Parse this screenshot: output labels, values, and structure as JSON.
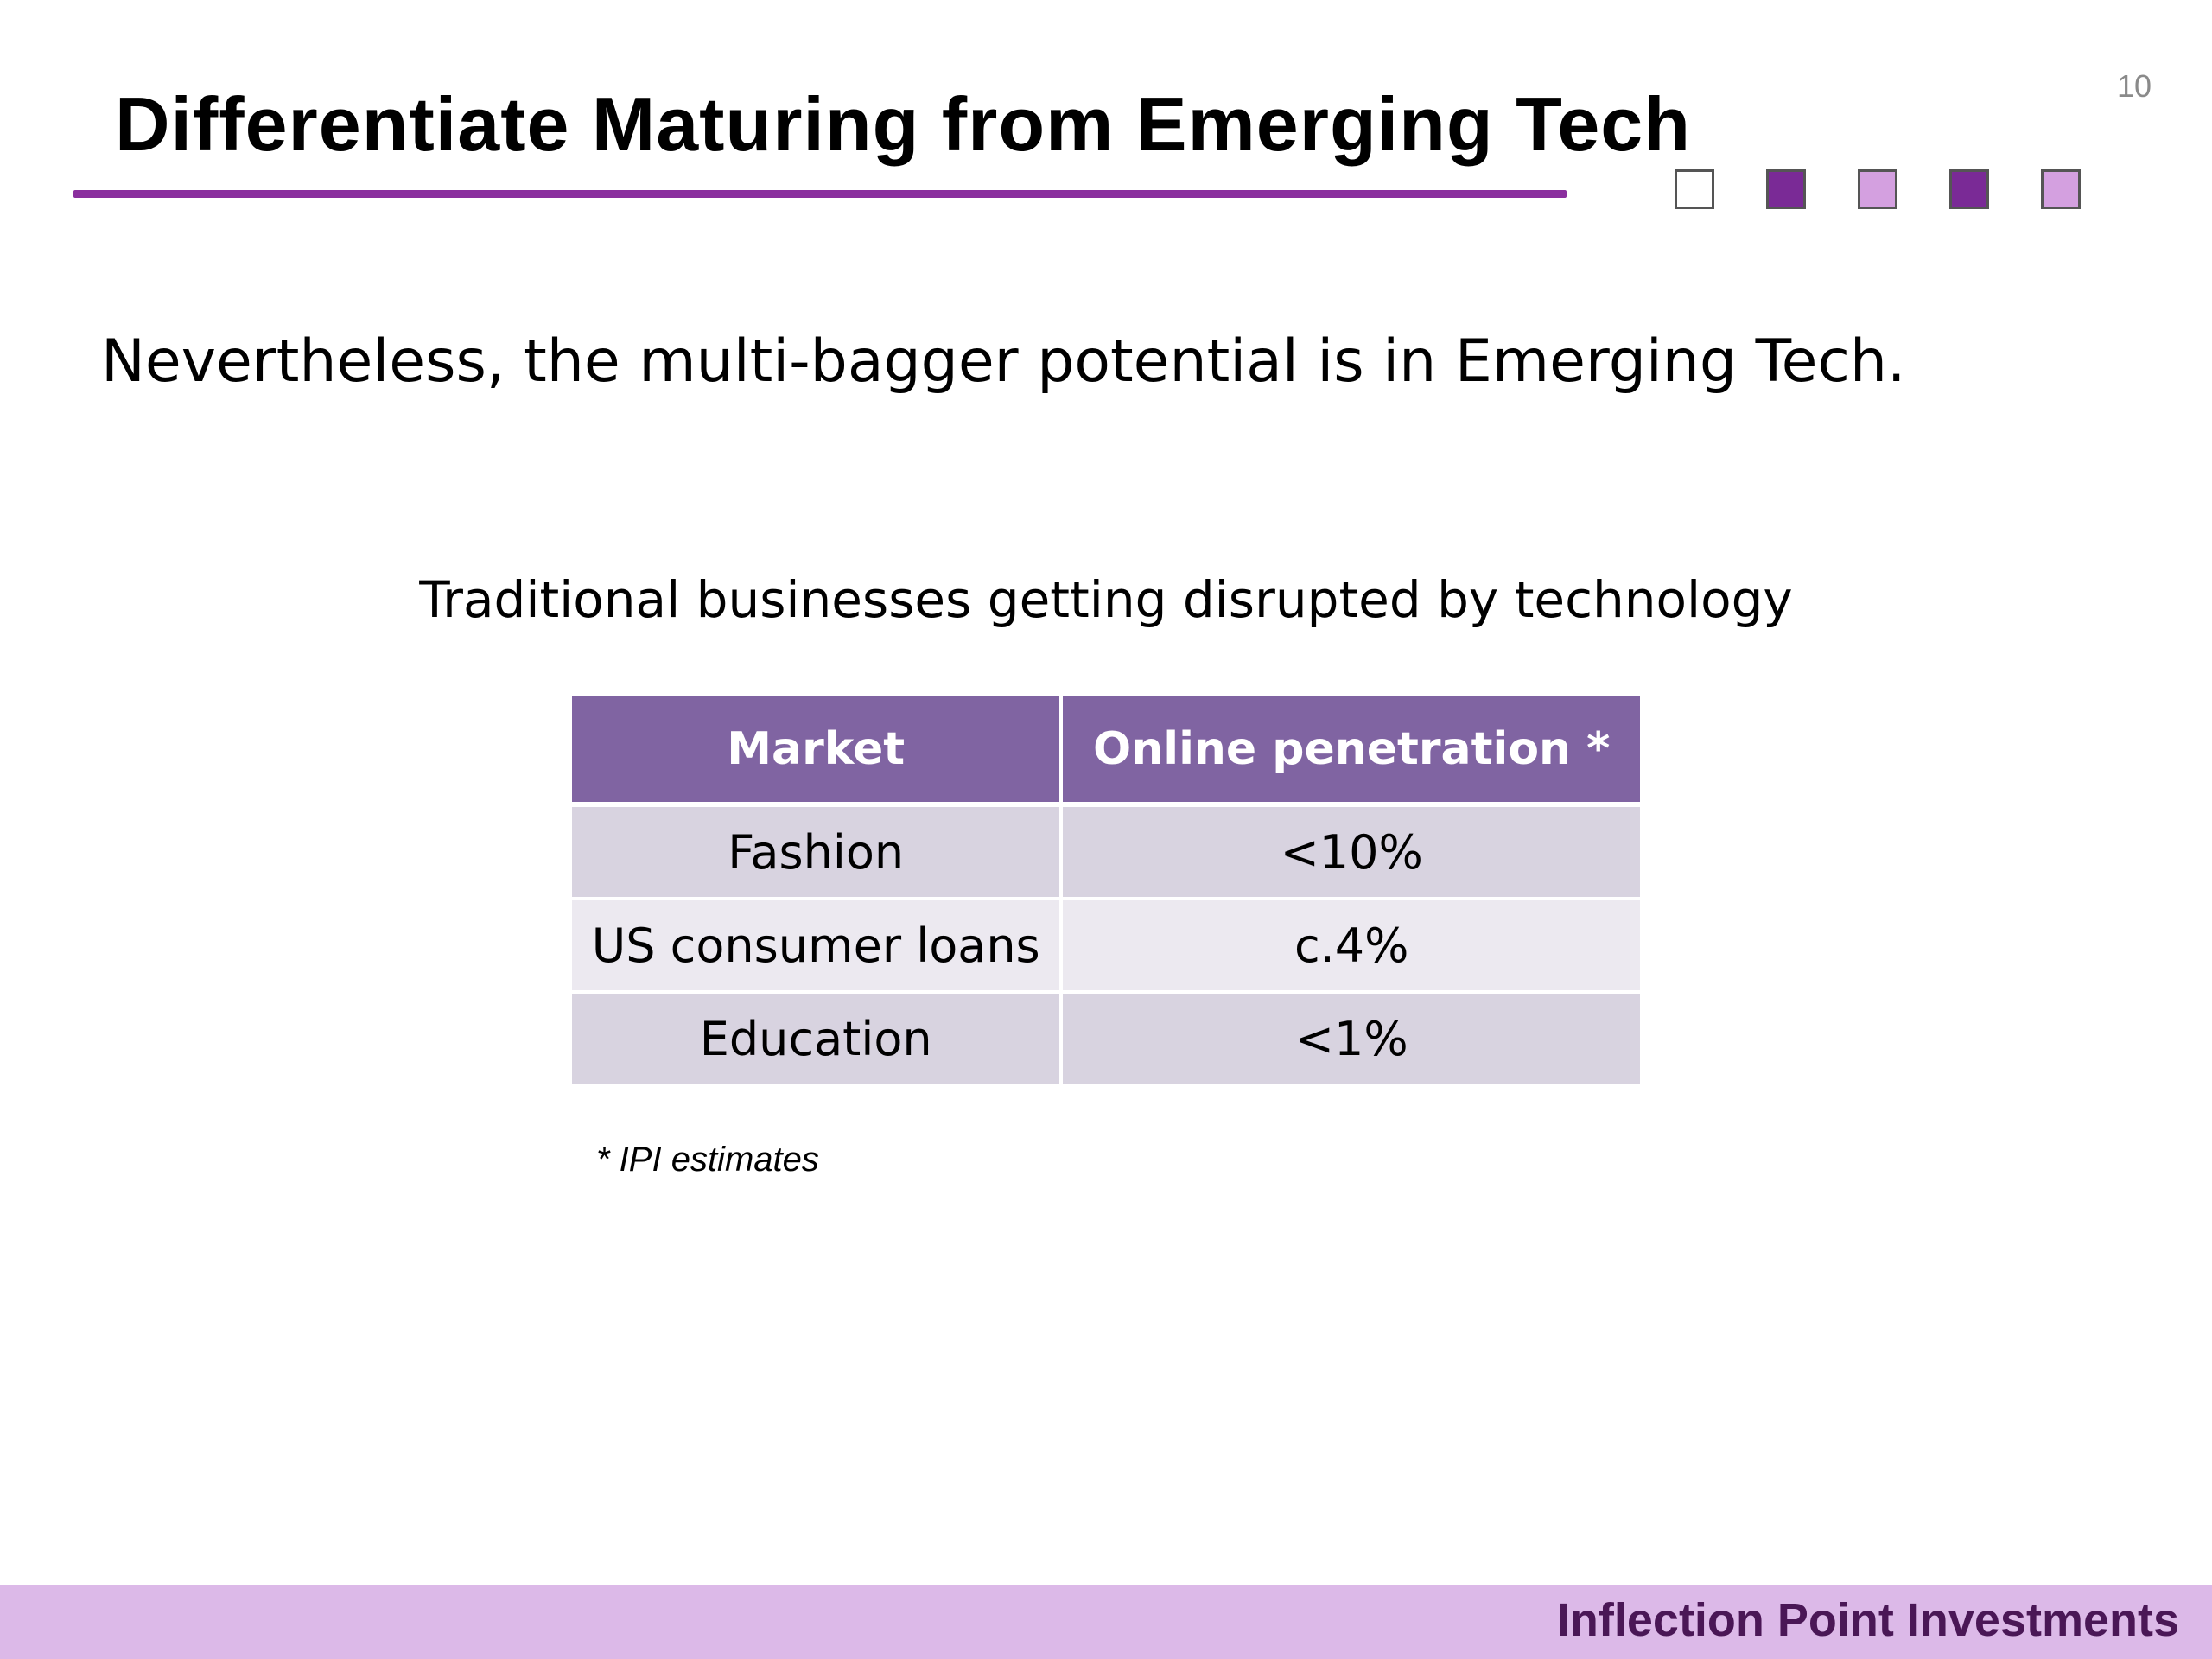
{
  "slide": {
    "page_number": "10",
    "title": "Differentiate Maturing from Emerging Tech",
    "headline": "Nevertheless, the multi-bagger potential is in Emerging Tech.",
    "table_caption": "Traditional businesses getting disrupted by technology",
    "footnote": "* IPI estimates"
  },
  "decorations": {
    "squares": [
      {
        "color": "#ffffff"
      },
      {
        "color": "#7a2a96"
      },
      {
        "color": "#d4a0e0"
      },
      {
        "color": "#7a2a96"
      },
      {
        "color": "#d4a0e0"
      }
    ],
    "accent_color": "#8a2f9e",
    "table_header_color": "#8064a2",
    "footer_color": "#dcb9e8"
  },
  "table": {
    "headers": [
      "Market",
      "Online penetration *"
    ],
    "rows": [
      [
        "Fashion",
        "<10%"
      ],
      [
        "US consumer loans",
        "c.4%"
      ],
      [
        "Education",
        "<1%"
      ]
    ]
  },
  "footer": {
    "brand": "Inflection Point Investments"
  }
}
